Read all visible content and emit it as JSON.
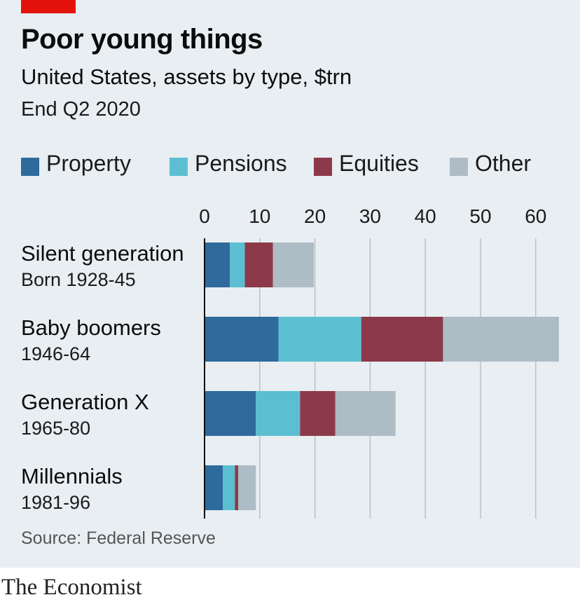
{
  "title": "Poor young things",
  "subtitle": "United States, assets by type, $trn",
  "period": "End Q2 2020",
  "source": "Source: Federal Reserve",
  "brand": "The Economist",
  "colors": {
    "Property": "#2e6a9c",
    "Pensions": "#5cbfd1",
    "Equities": "#8c3a49",
    "Other": "#aebcc5",
    "accent": "#e3120b"
  },
  "chart_data": {
    "type": "bar",
    "orientation": "horizontal",
    "stacked": true,
    "categories": [
      {
        "name": "Silent generation",
        "sub": "Born 1928-45"
      },
      {
        "name": "Baby boomers",
        "sub": "1946-64"
      },
      {
        "name": "Generation X",
        "sub": "1965-80"
      },
      {
        "name": "Millennials",
        "sub": "1981-96"
      }
    ],
    "series": [
      {
        "name": "Property",
        "values": [
          4.6,
          13.4,
          9.3,
          3.3
        ]
      },
      {
        "name": "Pensions",
        "values": [
          2.7,
          15.0,
          8.0,
          2.2
        ]
      },
      {
        "name": "Equities",
        "values": [
          5.1,
          14.8,
          6.4,
          0.6
        ]
      },
      {
        "name": "Other",
        "values": [
          7.4,
          21.0,
          10.9,
          3.2
        ]
      }
    ],
    "xlim": [
      0,
      65
    ],
    "xticks": [
      0,
      10,
      20,
      30,
      40,
      50,
      60
    ],
    "grid": true,
    "legend_position": "top"
  }
}
